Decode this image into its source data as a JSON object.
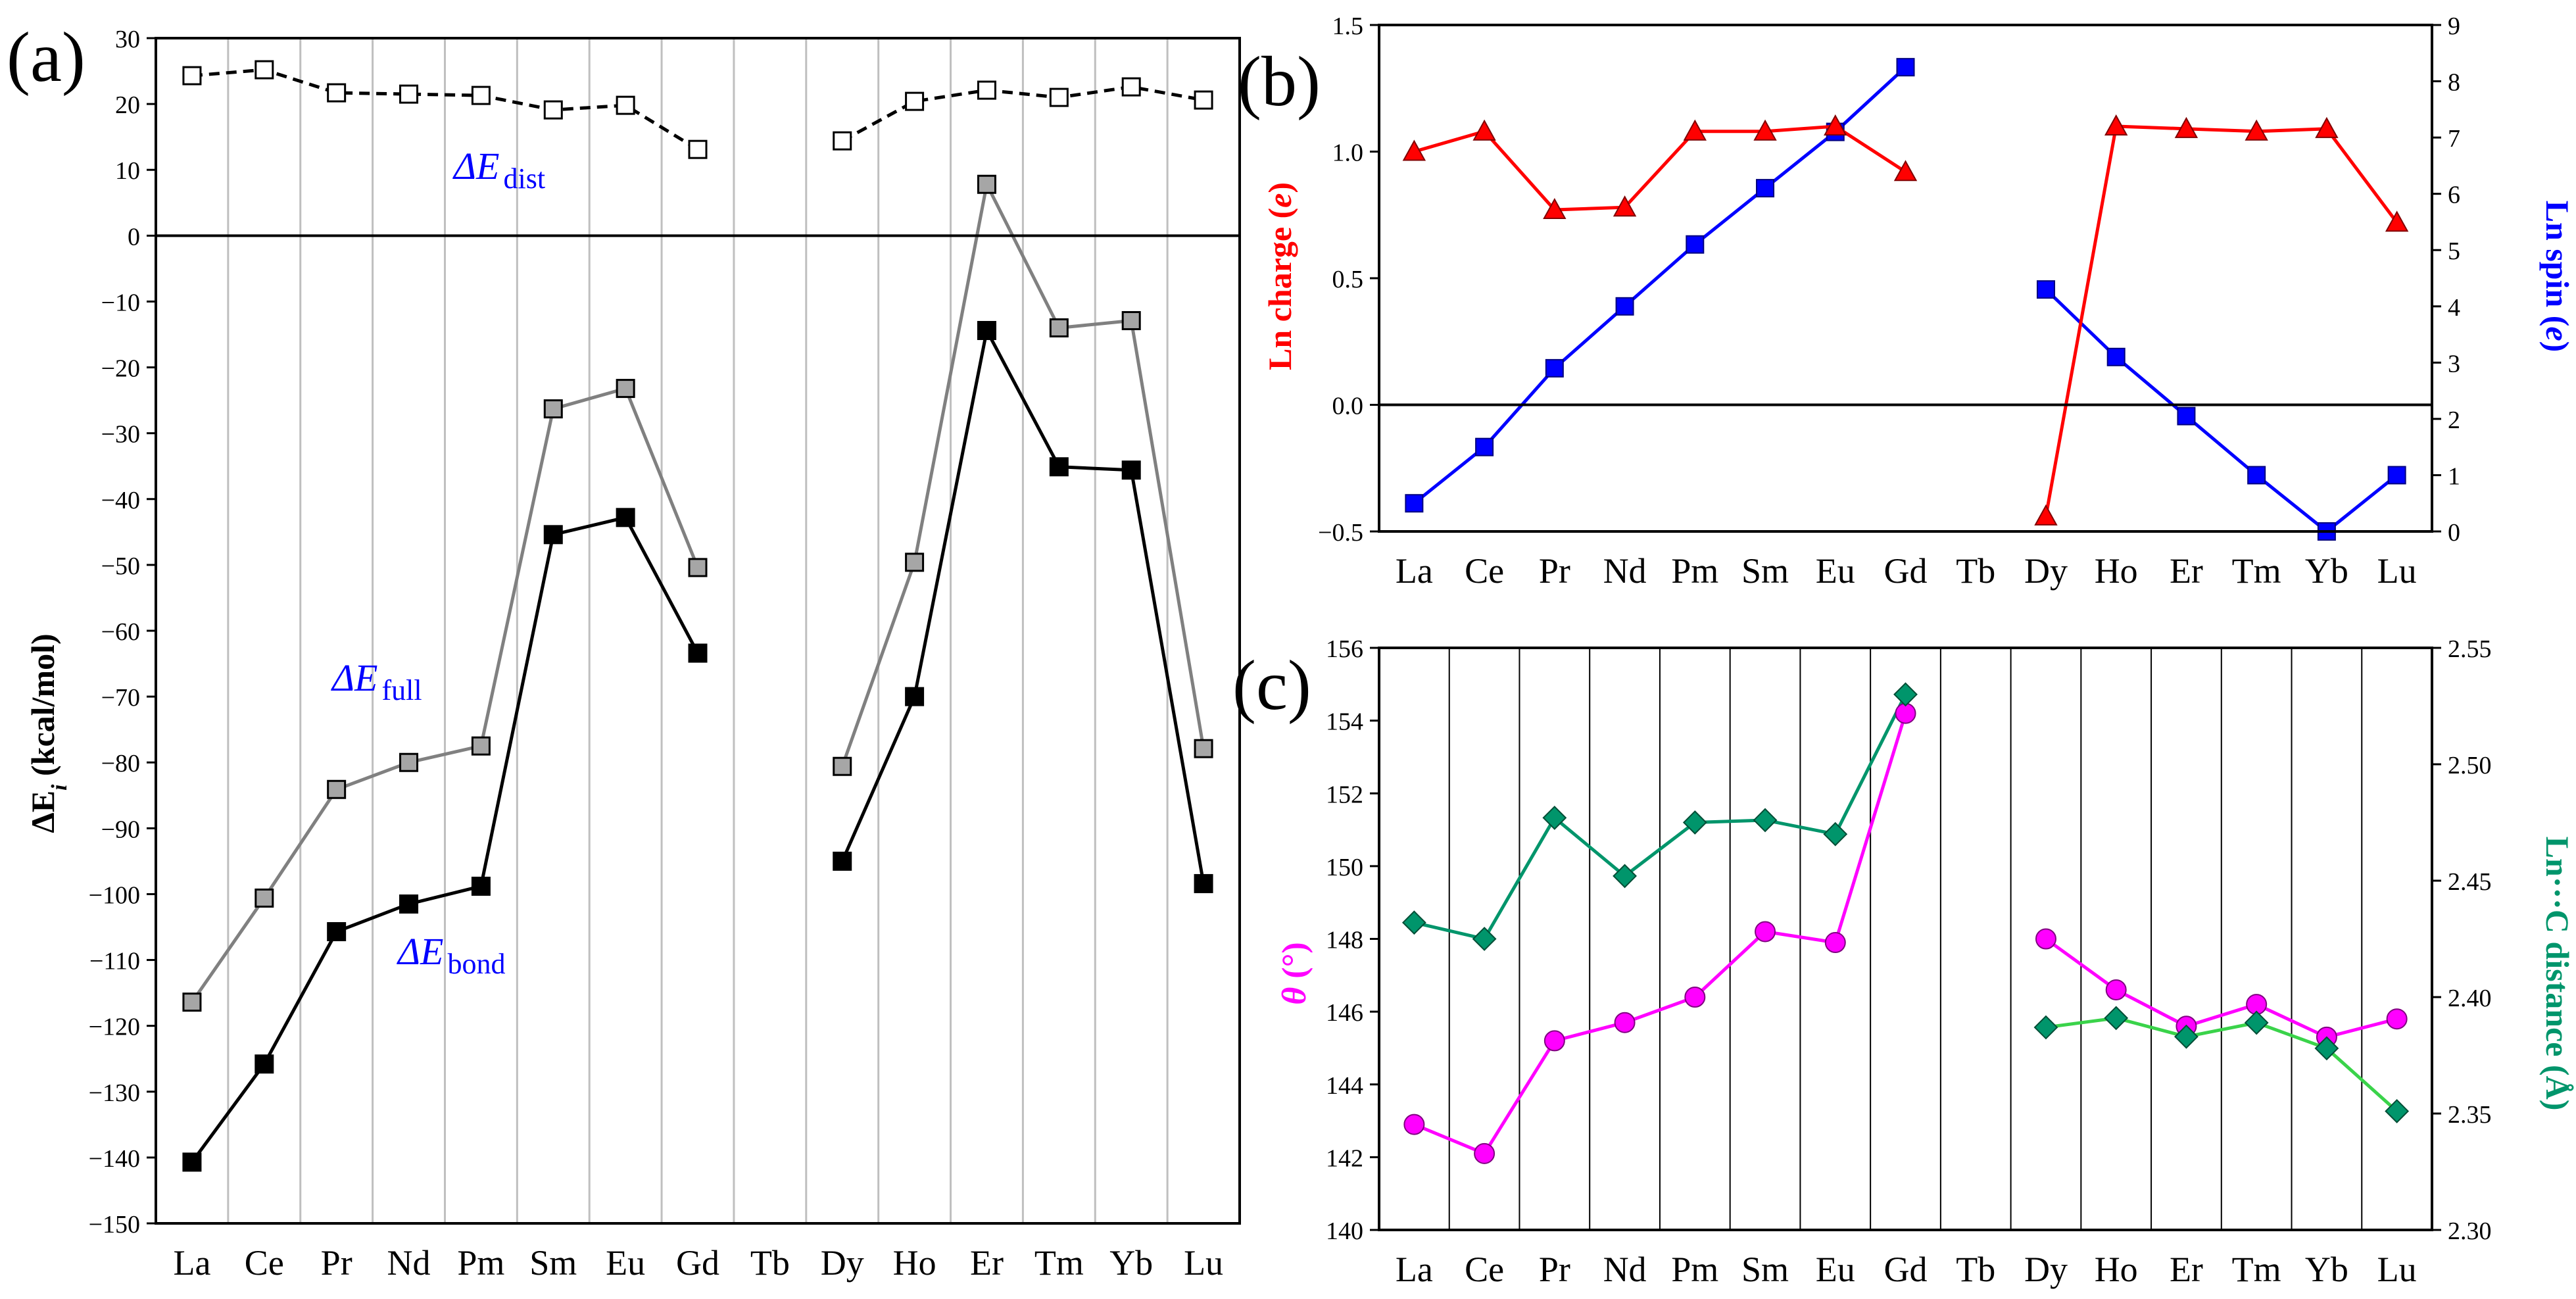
{
  "figure": {
    "panel_labels": [
      "(a)",
      "(b)",
      "(c)"
    ],
    "colors": {
      "black": "#000000",
      "gray": "#808080",
      "gray_fill": "#a6a6a6",
      "red": "#ff0000",
      "blue": "#0000ff",
      "magenta": "#ff00ff",
      "teal": "#00956b",
      "green": "#3ad34a",
      "grid": "#bfbfbf",
      "label_blue": "#0000ff"
    }
  },
  "chart_data": [
    {
      "id": "a",
      "type": "line",
      "categories": [
        "La",
        "Ce",
        "Pr",
        "Nd",
        "Pm",
        "Sm",
        "Eu",
        "Gd",
        "Tb",
        "Dy",
        "Ho",
        "Er",
        "Tm",
        "Yb",
        "Lu"
      ],
      "ylabel": "ΔE",
      "ylabel_sub": "i",
      "ylabel_unit": " (kcal/mol)",
      "ylim": [
        -150,
        30
      ],
      "yticks": [
        30,
        20,
        10,
        0,
        -10,
        -20,
        -30,
        -40,
        -50,
        -60,
        -70,
        -80,
        -90,
        -100,
        -110,
        -120,
        -130,
        -140,
        -150
      ],
      "series": [
        {
          "name": "ΔE dist",
          "label_main": "ΔE",
          "label_sub": "dist",
          "style": "dashed-open-square",
          "values": [
            24.3,
            25.2,
            21.7,
            21.5,
            21.3,
            19.1,
            19.8,
            13.1,
            null,
            14.4,
            20.4,
            22.1,
            21.0,
            22.6,
            20.6
          ]
        },
        {
          "name": "ΔE full",
          "label_main": "ΔE",
          "label_sub": "full",
          "style": "gray-square",
          "values": [
            -116.4,
            -100.6,
            -84.1,
            -80.0,
            -77.5,
            -26.3,
            -23.2,
            -50.4,
            null,
            -80.6,
            -49.6,
            7.8,
            -14.0,
            -12.9,
            -77.9
          ]
        },
        {
          "name": "ΔE bond",
          "label_main": "ΔE",
          "label_sub": "bond",
          "style": "black-square",
          "values": [
            -140.7,
            -125.8,
            -105.7,
            -101.5,
            -98.8,
            -45.4,
            -42.8,
            -63.4,
            null,
            -95.0,
            -70.0,
            -14.4,
            -35.1,
            -35.6,
            -98.4
          ]
        }
      ]
    },
    {
      "id": "b",
      "type": "line",
      "categories": [
        "La",
        "Ce",
        "Pr",
        "Nd",
        "Pm",
        "Sm",
        "Eu",
        "Gd",
        "Tb",
        "Dy",
        "Ho",
        "Er",
        "Tm",
        "Yb",
        "Lu"
      ],
      "ylabel_left": "Ln charge (",
      "ylabel_left_var": "e",
      "ylabel_left_end": ")",
      "ylabel_right": "Ln spin (",
      "ylabel_right_var": "e",
      "ylabel_right_end": ")",
      "ylim_left": [
        -0.5,
        1.5
      ],
      "yticks_left": [
        "1.5",
        "1.0",
        "0.5",
        "0.0",
        "−0.5"
      ],
      "ylim_right": [
        0,
        9
      ],
      "yticks_right": [
        "9",
        "8",
        "7",
        "6",
        "5",
        "4",
        "3",
        "2",
        "1",
        "0"
      ],
      "series": [
        {
          "name": "Ln charge",
          "axis": "left",
          "values": [
            1.0,
            1.08,
            0.77,
            0.78,
            1.08,
            1.08,
            1.1,
            0.92,
            null,
            -0.44,
            1.1,
            1.09,
            1.08,
            1.09,
            0.72
          ]
        },
        {
          "name": "Ln spin",
          "axis": "right",
          "values": [
            0.5,
            1.5,
            2.9,
            4.0,
            5.1,
            6.1,
            7.1,
            8.25,
            null,
            4.3,
            3.1,
            2.05,
            1.0,
            0.0,
            1.0
          ]
        }
      ]
    },
    {
      "id": "c",
      "type": "line",
      "categories": [
        "La",
        "Ce",
        "Pr",
        "Nd",
        "Pm",
        "Sm",
        "Eu",
        "Gd",
        "Tb",
        "Dy",
        "Ho",
        "Er",
        "Tm",
        "Yb",
        "Lu"
      ],
      "ylabel_left": "θ",
      "ylabel_left_unit": " (°)",
      "ylabel_right": "Ln···C distance (Å)",
      "ylim_left": [
        140,
        156
      ],
      "yticks_left": [
        "156",
        "154",
        "152",
        "150",
        "148",
        "146",
        "144",
        "142",
        "140"
      ],
      "ylim_right": [
        2.3,
        2.55
      ],
      "yticks_right": [
        "2.55",
        "2.50",
        "2.45",
        "2.40",
        "2.35",
        "2.30"
      ],
      "series": [
        {
          "name": "θ",
          "axis": "left",
          "values": [
            142.9,
            142.1,
            145.2,
            145.7,
            146.4,
            148.2,
            147.9,
            154.2,
            null,
            148.0,
            146.6,
            145.6,
            146.2,
            145.3,
            145.8
          ]
        },
        {
          "name": "Ln···C distance",
          "axis": "right",
          "values": [
            2.432,
            2.425,
            2.477,
            2.452,
            2.475,
            2.476,
            2.47,
            2.53,
            null,
            2.387,
            2.391,
            2.383,
            2.389,
            2.378,
            2.351
          ]
        }
      ]
    }
  ]
}
